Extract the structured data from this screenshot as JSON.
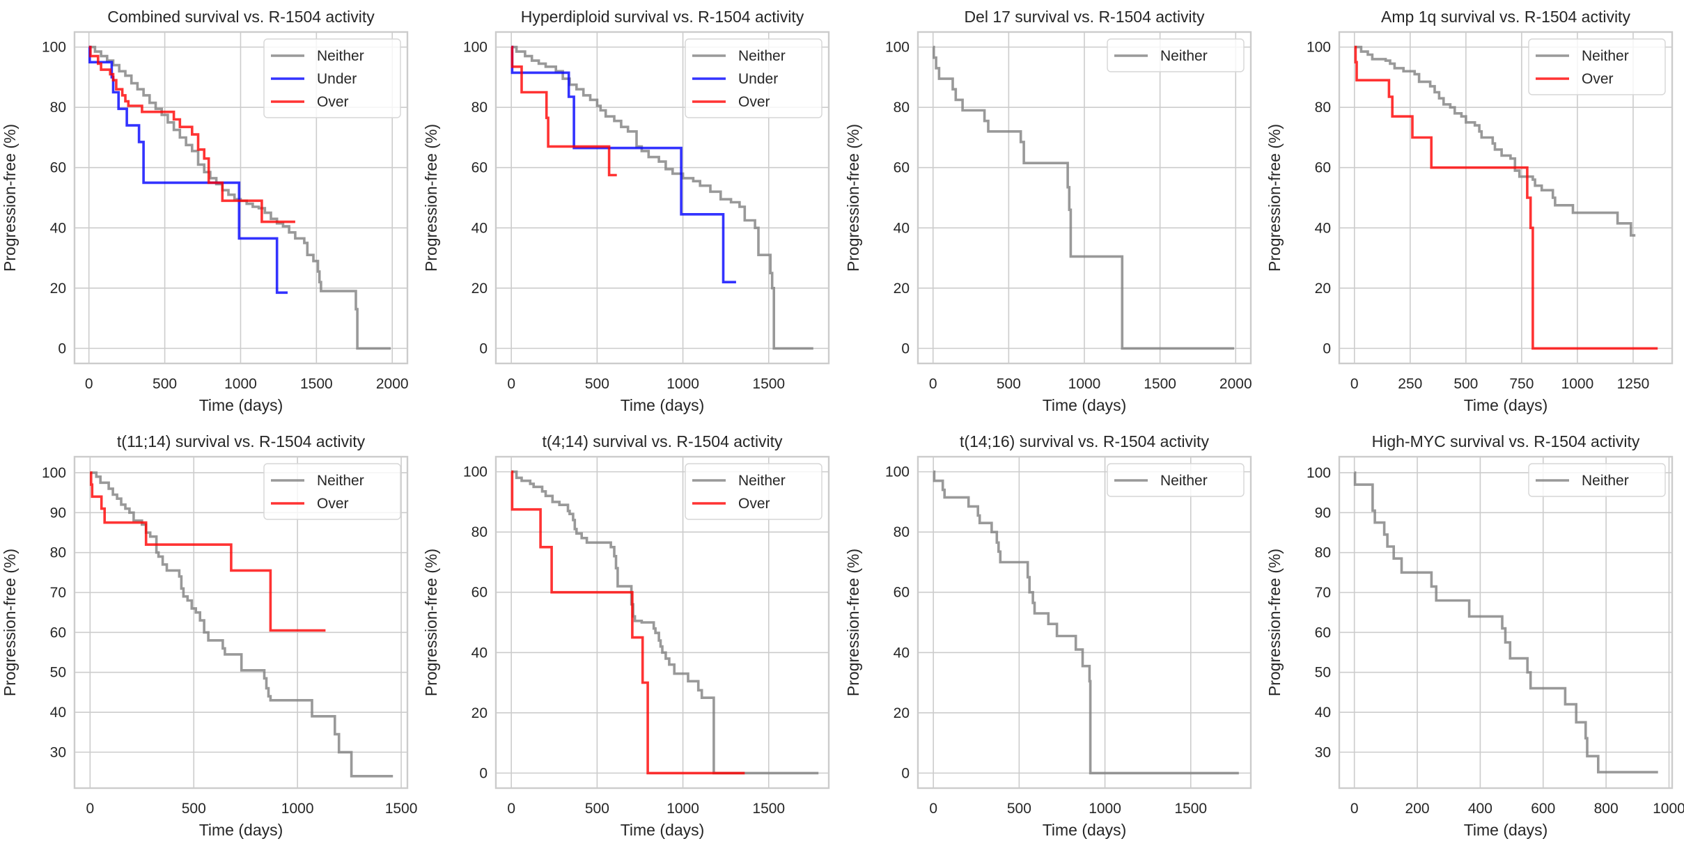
{
  "colors": {
    "Neither": "#808080",
    "Under": "#0000ff",
    "Over": "#ff0000",
    "grid": "#cccccc",
    "text": "#262626"
  },
  "chart_data": [
    {
      "type": "line",
      "title": "Combined survival vs. R-1504 activity",
      "xlabel": "Time (days)",
      "ylabel": "Progression-free (%)",
      "xlim": [
        -95,
        2100
      ],
      "ylim": [
        -5,
        105
      ],
      "xticks": [
        0,
        500,
        1000,
        1500,
        2000
      ],
      "yticks": [
        0,
        20,
        40,
        60,
        80,
        100
      ],
      "grid": true,
      "legend": "top-right",
      "series": [
        {
          "name": "Neither",
          "step": true,
          "x": [
            0,
            40,
            80,
            120,
            160,
            200,
            240,
            280,
            320,
            360,
            400,
            440,
            480,
            520,
            560,
            600,
            640,
            680,
            720,
            760,
            800,
            840,
            880,
            920,
            960,
            1000,
            1040,
            1080,
            1120,
            1160,
            1200,
            1240,
            1280,
            1320,
            1360,
            1400,
            1420,
            1440,
            1480,
            1510,
            1520,
            1530,
            1760,
            1770,
            1990
          ],
          "y": [
            100,
            98.5,
            97,
            95.5,
            94,
            92,
            90.5,
            88,
            86,
            84,
            81.5,
            79.5,
            77.5,
            75,
            72.5,
            70,
            67.5,
            65.5,
            61,
            58.5,
            56.5,
            54.5,
            52.5,
            51,
            49.5,
            49,
            48,
            47,
            46.5,
            45,
            43,
            41.5,
            40.5,
            38.5,
            36.5,
            36.5,
            35,
            31,
            29,
            25.5,
            22,
            19,
            13,
            0,
            0
          ]
        },
        {
          "name": "Under",
          "step": true,
          "x": [
            0,
            5,
            150,
            160,
            195,
            250,
            330,
            360,
            990,
            1240,
            1310
          ],
          "y": [
            100,
            95,
            90,
            85,
            79.5,
            74,
            68.5,
            55,
            36.5,
            18.5,
            18.5
          ]
        },
        {
          "name": "Over",
          "step": true,
          "x": [
            0,
            10,
            60,
            80,
            140,
            160,
            180,
            220,
            240,
            260,
            350,
            560,
            600,
            680,
            720,
            760,
            790,
            800,
            880,
            1140,
            1360
          ],
          "y": [
            100,
            97,
            94.5,
            92.5,
            91,
            89,
            86,
            84,
            82,
            80.5,
            78.5,
            76,
            73.5,
            71,
            66,
            63,
            55,
            55,
            49,
            42,
            42
          ]
        }
      ]
    },
    {
      "type": "line",
      "title": "Hyperdiploid survival vs. R-1504 activity",
      "xlabel": "Time (days)",
      "ylabel": "Progression-free (%)",
      "xlim": [
        -90,
        1850
      ],
      "ylim": [
        -5,
        105
      ],
      "xticks": [
        0,
        500,
        1000,
        1500
      ],
      "yticks": [
        0,
        20,
        40,
        60,
        80,
        100
      ],
      "grid": true,
      "legend": "top-right",
      "series": [
        {
          "name": "Neither",
          "step": true,
          "x": [
            0,
            30,
            80,
            120,
            160,
            200,
            260,
            300,
            340,
            380,
            420,
            460,
            500,
            520,
            550,
            600,
            640,
            680,
            730,
            760,
            800,
            860,
            900,
            940,
            1000,
            1060,
            1100,
            1160,
            1220,
            1280,
            1330,
            1360,
            1420,
            1440,
            1510,
            1520,
            1530,
            1760
          ],
          "y": [
            100,
            98.5,
            97,
            95.5,
            94.5,
            93.5,
            92,
            89.5,
            87.5,
            86,
            84,
            82.5,
            80.5,
            79,
            77,
            75.5,
            73.5,
            72,
            67,
            65.5,
            63.5,
            62,
            59.5,
            58,
            56.5,
            55.5,
            54,
            52,
            49.5,
            48.5,
            47,
            42.5,
            40,
            31,
            25,
            20,
            0,
            0
          ]
        },
        {
          "name": "Under",
          "step": true,
          "x": [
            0,
            5,
            335,
            365,
            990,
            1235,
            1310
          ],
          "y": [
            100,
            91.5,
            83.5,
            66.5,
            44.5,
            22,
            22
          ]
        },
        {
          "name": "Over",
          "step": true,
          "x": [
            0,
            5,
            60,
            205,
            215,
            570,
            615
          ],
          "y": [
            100,
            93.5,
            85,
            76.5,
            67,
            57.5,
            57.5
          ]
        }
      ]
    },
    {
      "type": "line",
      "title": "Del 17 survival vs. R-1504 activity",
      "xlabel": "Time (days)",
      "ylabel": "Progression-free (%)",
      "xlim": [
        -100,
        2100
      ],
      "ylim": [
        -5,
        105
      ],
      "xticks": [
        0,
        500,
        1000,
        1500,
        2000
      ],
      "yticks": [
        0,
        20,
        40,
        60,
        80,
        100
      ],
      "grid": true,
      "legend": "top-right",
      "series": [
        {
          "name": "Neither",
          "step": true,
          "x": [
            0,
            5,
            20,
            40,
            130,
            150,
            195,
            340,
            365,
            580,
            600,
            890,
            900,
            910,
            1250,
            1990
          ],
          "y": [
            100,
            96.5,
            93,
            89.5,
            86,
            82.5,
            79,
            75.5,
            72,
            68.5,
            61.5,
            53.5,
            46,
            30.5,
            0,
            0
          ]
        }
      ]
    },
    {
      "type": "line",
      "title": "Amp 1q survival vs. R-1504 activity",
      "xlabel": "Time (days)",
      "ylabel": "Progression-free (%)",
      "xlim": [
        -68,
        1425
      ],
      "ylim": [
        -5,
        105
      ],
      "xticks": [
        0,
        250,
        500,
        750,
        1000,
        1250
      ],
      "yticks": [
        0,
        20,
        40,
        60,
        80,
        100
      ],
      "grid": true,
      "legend": "top-right",
      "series": [
        {
          "name": "Neither",
          "step": true,
          "x": [
            0,
            30,
            60,
            80,
            140,
            160,
            180,
            220,
            270,
            290,
            340,
            360,
            380,
            400,
            430,
            450,
            480,
            500,
            540,
            560,
            570,
            620,
            630,
            660,
            700,
            720,
            740,
            800,
            810,
            840,
            890,
            900,
            980,
            1180,
            1240,
            1260
          ],
          "y": [
            100,
            98.5,
            97.5,
            96,
            95.5,
            94.5,
            93,
            92,
            91,
            88.5,
            87,
            85,
            83,
            81,
            80,
            78,
            77,
            75,
            74,
            72,
            70,
            68,
            66,
            64,
            63,
            59,
            57,
            56,
            54,
            52.5,
            50,
            47.5,
            45,
            41.5,
            37.5,
            37.5
          ]
        },
        {
          "name": "Over",
          "step": true,
          "x": [
            0,
            5,
            10,
            155,
            170,
            260,
            345,
            775,
            790,
            800,
            1360
          ],
          "y": [
            100,
            95,
            89,
            83.5,
            77,
            70,
            60,
            50,
            40,
            0,
            0
          ]
        }
      ]
    },
    {
      "type": "line",
      "title": "t(11;14) survival vs. R-1504 activity",
      "xlabel": "Time (days)",
      "ylabel": "Progression-free (%)",
      "xlim": [
        -75,
        1530
      ],
      "ylim": [
        21,
        104
      ],
      "xticks": [
        0,
        500,
        1000,
        1500
      ],
      "yticks": [
        30,
        40,
        50,
        60,
        70,
        80,
        90,
        100
      ],
      "grid": true,
      "legend": "top-right",
      "series": [
        {
          "name": "Neither",
          "step": true,
          "x": [
            0,
            30,
            50,
            90,
            110,
            130,
            150,
            170,
            190,
            210,
            250,
            270,
            290,
            320,
            330,
            350,
            370,
            430,
            440,
            450,
            470,
            490,
            510,
            530,
            550,
            570,
            640,
            650,
            730,
            840,
            850,
            860,
            870,
            1070,
            1180,
            1200,
            1260,
            1460
          ],
          "y": [
            100,
            99,
            97.5,
            96,
            94.5,
            93.5,
            92,
            91,
            90,
            88,
            87,
            85,
            84,
            80,
            79,
            77,
            75.5,
            74,
            71,
            69,
            68,
            66,
            65,
            63,
            60,
            58,
            56,
            54.5,
            50.5,
            48.5,
            46,
            44,
            43,
            39,
            34.5,
            30,
            24,
            24
          ]
        },
        {
          "name": "Over",
          "step": true,
          "x": [
            0,
            5,
            10,
            55,
            70,
            270,
            680,
            870,
            1135
          ],
          "y": [
            100,
            97,
            94,
            91,
            87.5,
            82,
            75.5,
            60.5,
            60.5
          ]
        }
      ]
    },
    {
      "type": "line",
      "title": "t(4;14) survival vs. R-1504 activity",
      "xlabel": "Time (days)",
      "ylabel": "Progression-free (%)",
      "xlim": [
        -90,
        1850
      ],
      "ylim": [
        -5,
        105
      ],
      "xticks": [
        0,
        500,
        1000,
        1500
      ],
      "yticks": [
        0,
        20,
        40,
        60,
        80,
        100
      ],
      "grid": true,
      "legend": "top-right",
      "series": [
        {
          "name": "Neither",
          "step": true,
          "x": [
            0,
            30,
            60,
            110,
            130,
            180,
            200,
            240,
            280,
            330,
            340,
            360,
            370,
            380,
            410,
            440,
            580,
            600,
            610,
            620,
            630,
            700,
            710,
            720,
            760,
            830,
            840,
            860,
            870,
            880,
            900,
            920,
            950,
            1030,
            1090,
            1110,
            1180,
            1790
          ],
          "y": [
            100,
            98,
            97,
            96,
            95,
            93.5,
            92,
            90,
            89,
            87,
            86,
            84,
            81,
            79.5,
            78,
            76.5,
            75,
            72,
            68,
            62,
            62,
            56,
            52,
            50.5,
            50,
            48,
            46.5,
            44,
            42,
            40,
            38,
            36,
            33,
            30.5,
            27.5,
            25,
            0,
            0
          ]
        },
        {
          "name": "Over",
          "step": true,
          "x": [
            0,
            5,
            170,
            235,
            705,
            765,
            795,
            1360
          ],
          "y": [
            100,
            87.5,
            75,
            60,
            45,
            30,
            0,
            0
          ]
        }
      ]
    },
    {
      "type": "line",
      "title": "t(14;16) survival vs. R-1504 activity",
      "xlabel": "Time (days)",
      "ylabel": "Progression-free (%)",
      "xlim": [
        -90,
        1850
      ],
      "ylim": [
        -5,
        105
      ],
      "xticks": [
        0,
        500,
        1000,
        1500
      ],
      "yticks": [
        0,
        20,
        40,
        60,
        80,
        100
      ],
      "grid": true,
      "legend": "top-right",
      "series": [
        {
          "name": "Neither",
          "step": true,
          "x": [
            0,
            5,
            55,
            65,
            205,
            260,
            270,
            340,
            370,
            380,
            390,
            550,
            560,
            580,
            590,
            670,
            720,
            830,
            870,
            910,
            915,
            1780
          ],
          "y": [
            100,
            97,
            94,
            91.5,
            88.5,
            85.5,
            83,
            80,
            76.5,
            73.5,
            70,
            65,
            60,
            56.5,
            53,
            49.5,
            45.5,
            41,
            35.5,
            30.5,
            0,
            0
          ]
        }
      ]
    },
    {
      "type": "line",
      "title": "High-MYC survival vs. R-1504 activity",
      "xlabel": "Time (days)",
      "ylabel": "Progression-free (%)",
      "xlim": [
        -48,
        1010
      ],
      "ylim": [
        21,
        104
      ],
      "xticks": [
        0,
        200,
        400,
        600,
        800,
        1000
      ],
      "yticks": [
        30,
        40,
        50,
        60,
        70,
        80,
        90,
        100
      ],
      "grid": true,
      "legend": "top-right",
      "series": [
        {
          "name": "Neither",
          "step": true,
          "x": [
            0,
            2,
            58,
            65,
            95,
            105,
            125,
            150,
            245,
            260,
            365,
            470,
            480,
            495,
            550,
            560,
            670,
            705,
            735,
            740,
            775,
            965
          ],
          "y": [
            100,
            97,
            90.5,
            87.5,
            84.5,
            81.5,
            78.5,
            75,
            71.5,
            68,
            64,
            61,
            57.5,
            53.5,
            50,
            46,
            42,
            37.5,
            33.5,
            29,
            25,
            25
          ]
        }
      ]
    }
  ]
}
